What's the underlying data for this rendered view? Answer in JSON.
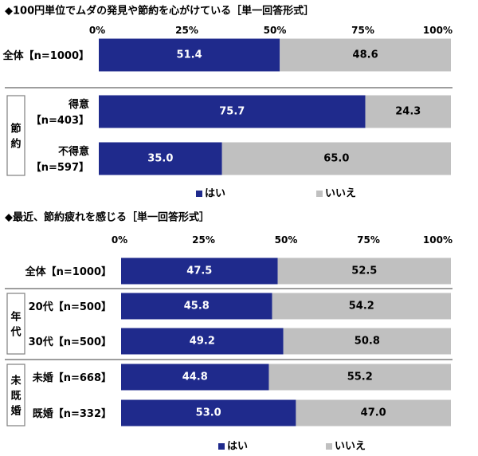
{
  "colors": {
    "yes": "#1f2a8c",
    "no": "#c0c0c0",
    "rule": "#7f7f7f"
  },
  "chart_data": [
    {
      "type": "bar",
      "stacked": true,
      "orientation": "horizontal",
      "title": "◆100円単位でムダの発見や節約を心がけている［単一回答形式］",
      "ticks": [
        "0%",
        "25%",
        "50%",
        "75%",
        "100%"
      ],
      "xlim": [
        0,
        100
      ],
      "groups": [
        {
          "label": "",
          "rows": [
            {
              "label": "全体【n=1000】",
              "lines": [
                "全体【n=1000】"
              ],
              "values": [
                51.4,
                48.6
              ],
              "labels": [
                "51.4",
                "48.6"
              ]
            }
          ]
        },
        {
          "label": "節約",
          "rows": [
            {
              "label": "得意【n=403】",
              "lines": [
                "得意",
                "【n=403】"
              ],
              "values": [
                75.7,
                24.3
              ],
              "labels": [
                "75.7",
                "24.3"
              ]
            },
            {
              "label": "不得意【n=597】",
              "lines": [
                "不得意",
                "【n=597】"
              ],
              "values": [
                35.0,
                65.0
              ],
              "labels": [
                "35.0",
                "65.0"
              ]
            }
          ]
        }
      ],
      "series": [
        {
          "name": "はい"
        },
        {
          "name": "いいえ"
        }
      ],
      "legend": "bottom"
    },
    {
      "type": "bar",
      "stacked": true,
      "orientation": "horizontal",
      "title": "◆最近、節約疲れを感じる［単一回答形式］",
      "ticks": [
        "0%",
        "25%",
        "50%",
        "75%",
        "100%"
      ],
      "xlim": [
        0,
        100
      ],
      "groups": [
        {
          "label": "",
          "rows": [
            {
              "label": "全体【n=1000】",
              "lines": [
                "全体【n=1000】"
              ],
              "values": [
                47.5,
                52.5
              ],
              "labels": [
                "47.5",
                "52.5"
              ]
            }
          ]
        },
        {
          "label": "年代",
          "rows": [
            {
              "label": "20代【n=500】",
              "lines": [
                "20代【n=500】"
              ],
              "values": [
                45.8,
                54.2
              ],
              "labels": [
                "45.8",
                "54.2"
              ]
            },
            {
              "label": "30代【n=500】",
              "lines": [
                "30代【n=500】"
              ],
              "values": [
                49.2,
                50.8
              ],
              "labels": [
                "49.2",
                "50.8"
              ]
            }
          ]
        },
        {
          "label": "未既婚",
          "rows": [
            {
              "label": "未婚【n=668】",
              "lines": [
                "未婚【n=668】"
              ],
              "values": [
                44.8,
                55.2
              ],
              "labels": [
                "44.8",
                "55.2"
              ]
            },
            {
              "label": "既婚【n=332】",
              "lines": [
                "既婚【n=332】"
              ],
              "values": [
                53.0,
                47.0
              ],
              "labels": [
                "53.0",
                "47.0"
              ]
            }
          ]
        }
      ],
      "series": [
        {
          "name": "はい"
        },
        {
          "name": "いいえ"
        }
      ],
      "legend": "bottom"
    }
  ]
}
